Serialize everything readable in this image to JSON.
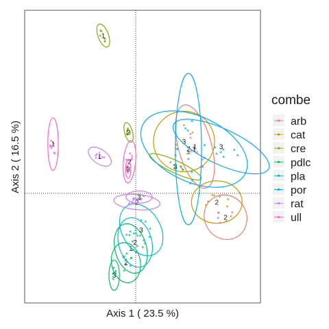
{
  "chart_data": {
    "type": "scatter",
    "xlabel": "Axis 1 ( 23.5 %)",
    "ylabel": "Axis 2 ( 16.5 %)",
    "xlim": [
      -0.3,
      0.24
    ],
    "ylim": [
      -0.22,
      0.36
    ],
    "grid": false,
    "reference_lines": {
      "x": 0,
      "y": 0
    },
    "legend": {
      "title": "combe",
      "placement": "right",
      "entries": [
        {
          "name": "arb",
          "color": "#F8766D"
        },
        {
          "name": "cat",
          "color": "#C49A00"
        },
        {
          "name": "cre",
          "color": "#7CAE00"
        },
        {
          "name": "pdlc",
          "color": "#00BE67"
        },
        {
          "name": "pla",
          "color": "#00BFC4"
        },
        {
          "name": "por",
          "color": "#00A9FF"
        },
        {
          "name": "rat",
          "color": "#C77CFF"
        },
        {
          "name": "ull",
          "color": "#FF61CC"
        }
      ]
    },
    "groups": [
      {
        "series": "arb",
        "label": "1",
        "cx": 0.09,
        "cy": 0.09,
        "rx": 0.038,
        "ry": 0.085,
        "angle": 15
      },
      {
        "series": "arb",
        "label": "2",
        "cx": 0.16,
        "cy": -0.05,
        "rx": 0.048,
        "ry": 0.045,
        "angle": 30
      },
      {
        "series": "cat",
        "label": "3",
        "cx": 0.065,
        "cy": 0.1,
        "rx": 0.07,
        "ry": 0.06,
        "angle": 0
      },
      {
        "series": "cat",
        "label": "2",
        "cx": 0.14,
        "cy": -0.02,
        "rx": 0.058,
        "ry": 0.042,
        "angle": 0
      },
      {
        "series": "cre",
        "label": "1",
        "cx": -0.12,
        "cy": 0.31,
        "rx": 0.012,
        "ry": 0.024,
        "angle": 20
      },
      {
        "series": "cre",
        "label": "2",
        "cx": -0.062,
        "cy": 0.118,
        "rx": 0.009,
        "ry": 0.02,
        "angle": 15
      },
      {
        "series": "cre",
        "label": "3",
        "cx": 0.045,
        "cy": 0.05,
        "rx": 0.065,
        "ry": 0.012,
        "angle": -25
      },
      {
        "series": "pdlc",
        "label": "3",
        "cx": -0.095,
        "cy": -0.165,
        "rx": 0.012,
        "ry": 0.03,
        "angle": 0
      },
      {
        "series": "pdlc",
        "label": "2",
        "cx": -0.068,
        "cy": -0.14,
        "rx": 0.033,
        "ry": 0.04,
        "angle": 10
      },
      {
        "series": "pdlc",
        "label": "1",
        "cx": -0.057,
        "cy": -0.112,
        "rx": 0.036,
        "ry": 0.05,
        "angle": 15
      },
      {
        "series": "pla",
        "label": "3",
        "cx": -0.033,
        "cy": -0.075,
        "rx": 0.044,
        "ry": 0.055,
        "angle": 30
      },
      {
        "series": "pla",
        "label": "2",
        "cx": -0.047,
        "cy": -0.1,
        "rx": 0.038,
        "ry": 0.05,
        "angle": 15
      },
      {
        "series": "por",
        "label": "1",
        "cx": 0.088,
        "cy": 0.085,
        "rx": 0.13,
        "ry": 0.065,
        "angle": -25
      },
      {
        "series": "por",
        "label": "2",
        "cx": 0.075,
        "cy": 0.085,
        "rx": 0.03,
        "ry": 0.15,
        "angle": 0
      },
      {
        "series": "por",
        "label": "3",
        "cx": 0.15,
        "cy": 0.09,
        "rx": 0.12,
        "ry": 0.035,
        "angle": -25
      },
      {
        "series": "rat",
        "label": "1",
        "cx": -0.128,
        "cy": 0.07,
        "rx": 0.03,
        "ry": 0.014,
        "angle": -35
      },
      {
        "series": "rat",
        "label": "2",
        "cx": -0.043,
        "cy": -0.02,
        "rx": 0.053,
        "ry": 0.015,
        "angle": -5
      },
      {
        "series": "rat",
        "label": "3",
        "cx": -0.038,
        "cy": -0.01,
        "rx": 0.03,
        "ry": 0.012,
        "angle": 0
      },
      {
        "series": "ull",
        "label": "1",
        "cx": -0.235,
        "cy": 0.095,
        "rx": 0.012,
        "ry": 0.052,
        "angle": 0
      },
      {
        "series": "ull",
        "label": "2",
        "cx": -0.06,
        "cy": 0.06,
        "rx": 0.014,
        "ry": 0.042,
        "angle": -5
      },
      {
        "series": "ull",
        "label": "3",
        "cx": -0.063,
        "cy": 0.045,
        "rx": 0.006,
        "ry": 0.018,
        "angle": 0
      }
    ]
  }
}
